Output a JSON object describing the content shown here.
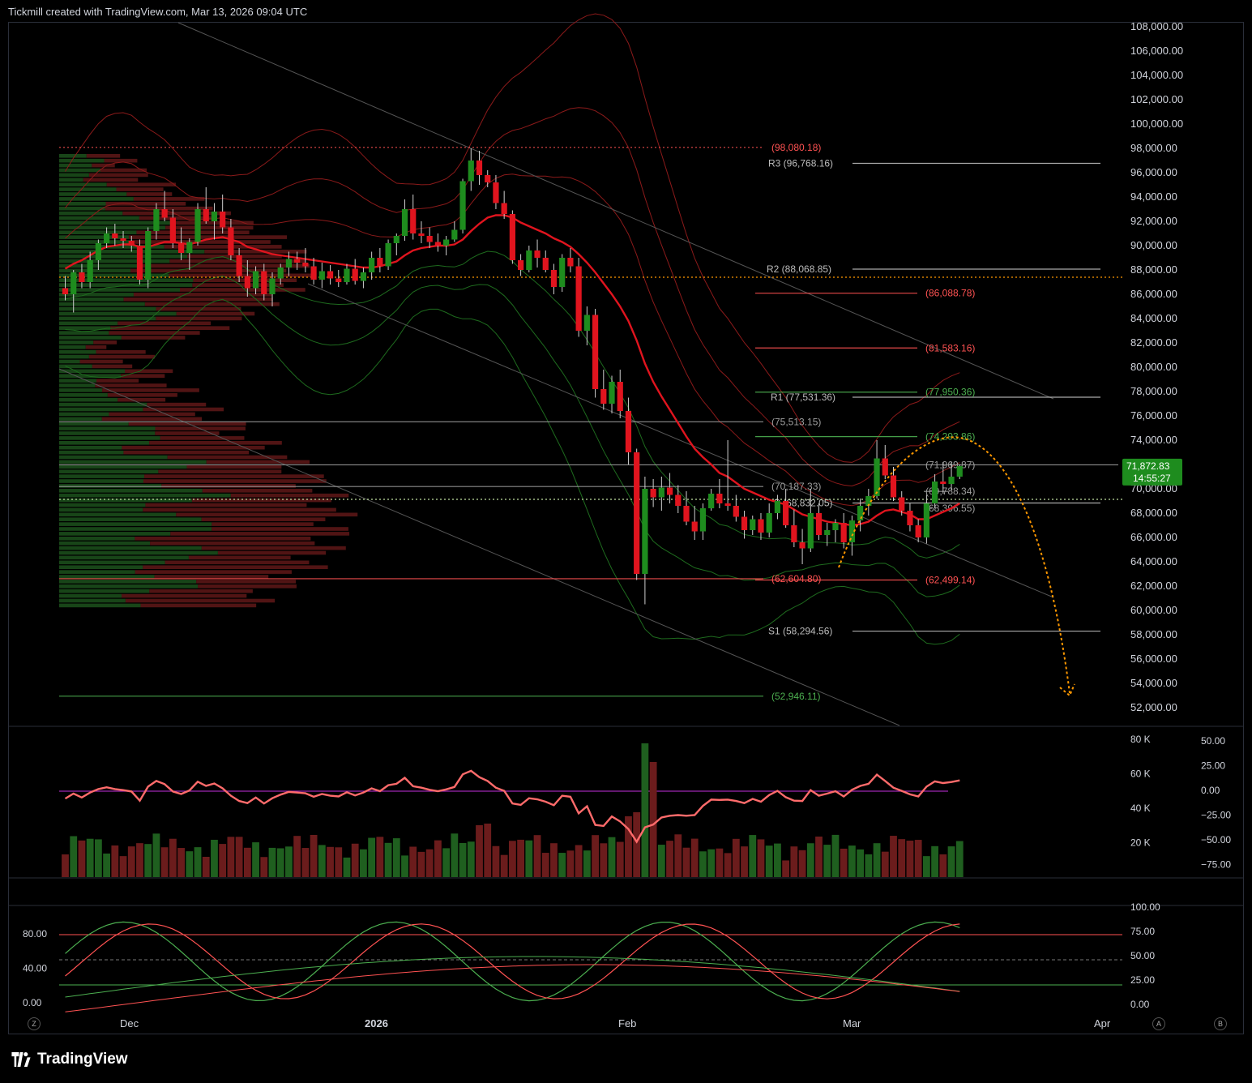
{
  "header": {
    "attribution": "Tickmill created with TradingView.com, Mar 13, 2026 09:04 UTC"
  },
  "footer": {
    "brand": "TradingView"
  },
  "buttons": {
    "z_label": "Z",
    "a_label": "A",
    "b_label": "B"
  },
  "colors": {
    "bull": "#1e8c1e",
    "bear": "#e0141e",
    "ema": "#e0141e",
    "levels_green": "#4caf50",
    "levels_red": "#ff5252",
    "orange": "#ff9800"
  },
  "chart_data": {
    "type": "candlestick",
    "price_axis": {
      "ticks": [
        "108,000.00",
        "106,000.00",
        "104,000.00",
        "102,000.00",
        "100,000.00",
        "98,000.00",
        "96,000.00",
        "94,000.00",
        "92,000.00",
        "90,000.00",
        "88,000.00",
        "86,000.00",
        "84,000.00",
        "82,000.00",
        "80,000.00",
        "78,000.00",
        "76,000.00",
        "74,000.00",
        "72,000.00",
        "70,000.00",
        "68,000.00",
        "66,000.00",
        "64,000.00",
        "62,000.00",
        "60,000.00",
        "58,000.00",
        "56,000.00",
        "54,000.00",
        "52,000.00"
      ],
      "range": [
        51000,
        109000
      ]
    },
    "time_axis": {
      "labels": [
        "Dec",
        "2026",
        "Feb",
        "Mar",
        "Apr"
      ]
    },
    "current_price": {
      "price": "71,872.83",
      "countdown": "14:55:27",
      "value": 71872.83
    },
    "candles": [
      [
        86500,
        87500,
        85500,
        86000
      ],
      [
        86000,
        88000,
        84500,
        87800
      ],
      [
        87800,
        88500,
        86500,
        87000
      ],
      [
        87000,
        89500,
        86500,
        88800
      ],
      [
        88800,
        90500,
        88000,
        90200
      ],
      [
        90200,
        91500,
        89800,
        91000
      ],
      [
        91000,
        91800,
        90000,
        90600
      ],
      [
        90600,
        91200,
        89800,
        90400
      ],
      [
        90400,
        90800,
        89500,
        90000
      ],
      [
        90000,
        90500,
        86800,
        87200
      ],
      [
        87200,
        91500,
        86500,
        91200
      ],
      [
        91200,
        93500,
        90500,
        93000
      ],
      [
        93000,
        94500,
        92000,
        92300
      ],
      [
        92300,
        93000,
        89800,
        90200
      ],
      [
        90200,
        91500,
        88800,
        89400
      ],
      [
        89400,
        90600,
        88000,
        90300
      ],
      [
        90300,
        93500,
        90000,
        93000
      ],
      [
        93000,
        94800,
        91800,
        92000
      ],
      [
        92000,
        93500,
        90500,
        92800
      ],
      [
        92800,
        94200,
        91000,
        91500
      ],
      [
        91500,
        92200,
        88800,
        89200
      ],
      [
        89200,
        89800,
        87000,
        87500
      ],
      [
        87500,
        88800,
        85800,
        86500
      ],
      [
        86500,
        88300,
        86000,
        87900
      ],
      [
        87900,
        88500,
        85500,
        86000
      ],
      [
        86000,
        87800,
        85000,
        87300
      ],
      [
        87300,
        88500,
        86800,
        88200
      ],
      [
        88200,
        89500,
        87500,
        88900
      ],
      [
        88900,
        89500,
        88000,
        88600
      ],
      [
        88600,
        89800,
        87800,
        88300
      ],
      [
        88300,
        89000,
        86800,
        87200
      ],
      [
        87200,
        88600,
        86500,
        87900
      ],
      [
        87900,
        88400,
        86800,
        87300
      ],
      [
        87300,
        88000,
        86600,
        87000
      ],
      [
        87000,
        88500,
        86800,
        88100
      ],
      [
        88100,
        88900,
        86800,
        87100
      ],
      [
        87100,
        88200,
        86500,
        87800
      ],
      [
        87800,
        89500,
        87200,
        89000
      ],
      [
        89000,
        89800,
        87800,
        88300
      ],
      [
        88300,
        90500,
        88000,
        90200
      ],
      [
        90200,
        91000,
        89200,
        90800
      ],
      [
        90800,
        93800,
        90400,
        93000
      ],
      [
        93000,
        94200,
        90500,
        91000
      ],
      [
        91000,
        92000,
        90200,
        90800
      ],
      [
        90800,
        91500,
        89800,
        90300
      ],
      [
        90300,
        91000,
        89500,
        90000
      ],
      [
        90000,
        90800,
        89200,
        90500
      ],
      [
        90500,
        92000,
        90300,
        91300
      ],
      [
        91300,
        95500,
        91000,
        95300
      ],
      [
        95300,
        98000,
        94500,
        97000
      ],
      [
        97000,
        97800,
        95000,
        95800
      ],
      [
        95800,
        96200,
        94800,
        95200
      ],
      [
        95200,
        95800,
        93000,
        93500
      ],
      [
        93500,
        94500,
        92200,
        92600
      ],
      [
        92600,
        92900,
        88500,
        88800
      ],
      [
        88800,
        89300,
        87500,
        88000
      ],
      [
        88000,
        90000,
        87800,
        89600
      ],
      [
        89600,
        90500,
        88200,
        89000
      ],
      [
        89000,
        89600,
        87800,
        88000
      ],
      [
        88000,
        88500,
        86000,
        86600
      ],
      [
        86600,
        89300,
        86200,
        89000
      ],
      [
        89000,
        89800,
        87800,
        88300
      ],
      [
        88300,
        89000,
        82500,
        83000
      ],
      [
        83000,
        85000,
        81800,
        84300
      ],
      [
        84300,
        84800,
        77500,
        78200
      ],
      [
        78200,
        79800,
        76500,
        77000
      ],
      [
        77000,
        79300,
        76200,
        78800
      ],
      [
        78800,
        79800,
        75800,
        76400
      ],
      [
        76400,
        77500,
        72000,
        73000
      ],
      [
        73000,
        73300,
        62500,
        63000
      ],
      [
        63000,
        71000,
        60500,
        70000
      ],
      [
        70000,
        70800,
        68500,
        69300
      ],
      [
        69300,
        71000,
        68200,
        70100
      ],
      [
        70100,
        71300,
        68800,
        69500
      ],
      [
        69500,
        70300,
        68000,
        68600
      ],
      [
        68600,
        69800,
        67000,
        67300
      ],
      [
        67300,
        68600,
        65800,
        66500
      ],
      [
        66500,
        68800,
        65800,
        68400
      ],
      [
        68400,
        70000,
        68200,
        69600
      ],
      [
        69600,
        70800,
        68400,
        68800
      ],
      [
        68800,
        74000,
        68200,
        68600
      ],
      [
        68600,
        69500,
        67300,
        67700
      ],
      [
        67700,
        68200,
        65900,
        66600
      ],
      [
        66600,
        67800,
        66200,
        67500
      ],
      [
        67500,
        68000,
        65800,
        66400
      ],
      [
        66400,
        68800,
        66000,
        68000
      ],
      [
        68000,
        69500,
        67500,
        69000
      ],
      [
        69000,
        70000,
        66800,
        67000
      ],
      [
        67000,
        68300,
        65200,
        65600
      ],
      [
        65600,
        66700,
        63800,
        65100
      ],
      [
        65100,
        70000,
        64800,
        68000
      ],
      [
        68000,
        68800,
        65800,
        66200
      ],
      [
        66200,
        67200,
        65300,
        66600
      ],
      [
        66600,
        67500,
        65600,
        67200
      ],
      [
        67200,
        68000,
        65100,
        65600
      ],
      [
        65600,
        67800,
        64500,
        67400
      ],
      [
        67400,
        69200,
        66500,
        68600
      ],
      [
        68600,
        70000,
        67800,
        69400
      ],
      [
        69400,
        74000,
        69200,
        72500
      ],
      [
        72500,
        73600,
        70800,
        71100
      ],
      [
        71100,
        71800,
        69000,
        69300
      ],
      [
        69300,
        69800,
        67800,
        68200
      ],
      [
        68200,
        68800,
        66500,
        67000
      ],
      [
        67000,
        67500,
        65600,
        66000
      ],
      [
        66000,
        69500,
        65500,
        68800
      ],
      [
        68800,
        71200,
        68400,
        70600
      ],
      [
        70600,
        72200,
        69600,
        70400
      ],
      [
        70400,
        72200,
        69900,
        71000
      ],
      [
        71000,
        72000,
        70800,
        71872
      ]
    ],
    "ema": [
      88100,
      88500,
      88800,
      89200,
      89600,
      89900,
      90000,
      90100,
      90100,
      89900,
      89900,
      90100,
      90300,
      90300,
      90200,
      90100,
      90300,
      90500,
      90600,
      90700,
      90500,
      90300,
      89900,
      89700,
      89500,
      89300,
      89200,
      89100,
      89000,
      88900,
      88800,
      88700,
      88600,
      88500,
      88400,
      88300,
      88200,
      88200,
      88300,
      88500,
      88700,
      89200,
      89600,
      89800,
      89900,
      90000,
      90000,
      90100,
      90500,
      91200,
      91800,
      92300,
      92500,
      92500,
      92300,
      91900,
      91600,
      91300,
      91000,
      90600,
      90300,
      89900,
      89300,
      88600,
      87800,
      86900,
      86000,
      85000,
      83800,
      82200,
      80300,
      78800,
      77600,
      76500,
      75400,
      74300,
      73300,
      72600,
      72000,
      71300,
      71000,
      70500,
      70000,
      69700,
      69400,
      69100,
      68900,
      68700,
      68300,
      67900,
      67700,
      67500,
      67300,
      67200,
      67100,
      67000,
      67100,
      67300,
      67800,
      68200,
      68300,
      68100,
      67900,
      67500,
      67500,
      67800,
      68100,
      68400,
      68800
    ],
    "levels": [
      {
        "label": "(98,080.18)",
        "value": 98080.18,
        "color": "#ff5252",
        "dotted": true
      },
      {
        "label": "R3 (96,768.16)",
        "value": 96768.16,
        "color": "#bdbdbd"
      },
      {
        "label": "R2 (88,068.85)",
        "value": 88068.85,
        "color": "#bdbdbd"
      },
      {
        "label": "(86,088.78)",
        "value": 86088.78,
        "color": "#ff5252"
      },
      {
        "label": "(81,583.16)",
        "value": 81583.16,
        "color": "#ff5252"
      },
      {
        "label": "R1 (77,531.36)",
        "value": 77531.36,
        "color": "#bdbdbd"
      },
      {
        "label": "(77,950.36)",
        "value": 77950.36,
        "color": "#4caf50"
      },
      {
        "label": "(75,513.15)",
        "value": 75513.15,
        "color": "#9e9e9e"
      },
      {
        "label": "(74,293.86)",
        "value": 74293.86,
        "color": "#4caf50"
      },
      {
        "label": "(71,969.87)",
        "value": 71969.87,
        "color": "#9e9e9e"
      },
      {
        "label": "(70,187.33)",
        "value": 70187.33,
        "color": "#9e9e9e"
      },
      {
        "label": "(69,788.34)",
        "value": 69788.34,
        "color": "#9e9e9e"
      },
      {
        "label": "P (68,832.05)",
        "value": 68832.05,
        "color": "#bdbdbd"
      },
      {
        "label": "(68,396.55)",
        "value": 68396.55,
        "color": "#9e9e9e"
      },
      {
        "label": "(62,604.80)",
        "value": 62604.8,
        "color": "#ff5252"
      },
      {
        "label": "(62,499.14)",
        "value": 62499.14,
        "color": "#ff5252"
      },
      {
        "label": "S1 (58,294.56)",
        "value": 58294.56,
        "color": "#bdbdbd"
      },
      {
        "label": "(52,946.11)",
        "value": 52946.11,
        "color": "#4caf50"
      }
    ],
    "volume_panel": {
      "left_ticks": [
        "80 K",
        "60 K",
        "40 K",
        "20 K"
      ],
      "right_ticks": [
        "50.00",
        "25.00",
        "0.00",
        "−25.00",
        "−50.00",
        "−75.00"
      ]
    },
    "oscillator_panel": {
      "left_ticks": [
        "80.00",
        "40.00",
        "0.00"
      ],
      "right_ticks": [
        "100.00",
        "75.00",
        "50.00",
        "25.00",
        "0.00"
      ]
    }
  }
}
